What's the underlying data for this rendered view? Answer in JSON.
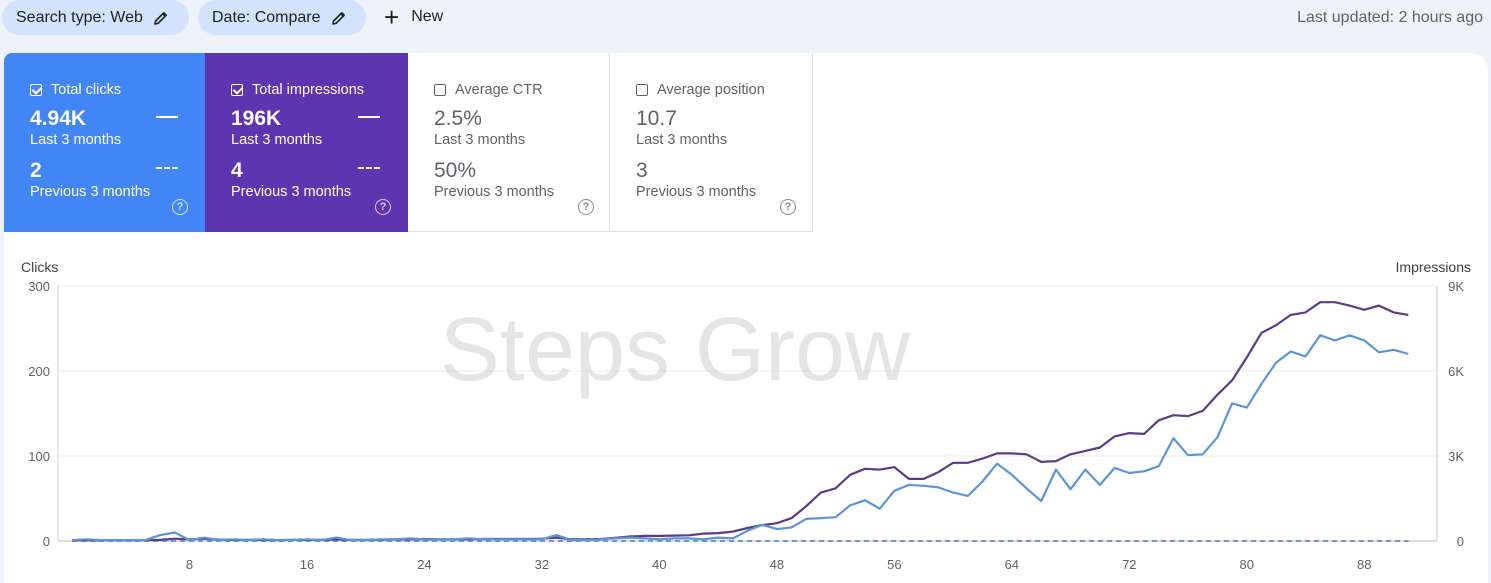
{
  "filters": {
    "search_type": "Search type: Web",
    "date": "Date: Compare",
    "new_label": "New"
  },
  "last_updated": "Last updated: 2 hours ago",
  "cards": {
    "clicks": {
      "title": "Total clicks",
      "checked": true,
      "current_value": "4.94K",
      "current_label": "Last 3 months",
      "previous_value": "2",
      "previous_label": "Previous 3 months",
      "color": "#4285f4"
    },
    "impressions": {
      "title": "Total impressions",
      "checked": true,
      "current_value": "196K",
      "current_label": "Last 3 months",
      "previous_value": "4",
      "previous_label": "Previous 3 months",
      "color": "#5e35b1"
    },
    "ctr": {
      "title": "Average CTR",
      "checked": false,
      "current_value": "2.5%",
      "current_label": "Last 3 months",
      "previous_value": "50%",
      "previous_label": "Previous 3 months"
    },
    "position": {
      "title": "Average position",
      "checked": false,
      "current_value": "10.7",
      "current_label": "Last 3 months",
      "previous_value": "3",
      "previous_label": "Previous 3 months"
    }
  },
  "help_glyph": "?",
  "watermark": "Steps Grow",
  "chart_data": {
    "type": "line",
    "ylabel_left": "Clicks",
    "ylabel_right": "Impressions",
    "yticks_left": [
      "300",
      "200",
      "100",
      "0"
    ],
    "yticks_right": [
      "9K",
      "6K",
      "3K",
      "0"
    ],
    "ylim_left": [
      0,
      300
    ],
    "ylim_right": [
      0,
      9000
    ],
    "xlim": [
      0,
      92
    ],
    "xticks": [
      8,
      16,
      24,
      32,
      40,
      48,
      56,
      64,
      72,
      80,
      88
    ],
    "grid": true,
    "legend": "none",
    "series": [
      {
        "name": "Total clicks",
        "axis": "left",
        "color": "#5b95d9",
        "style": "solid",
        "x": [
          0,
          1,
          2,
          3,
          4,
          5,
          6,
          7,
          8,
          9,
          10,
          11,
          12,
          13,
          14,
          15,
          16,
          17,
          18,
          19,
          20,
          21,
          22,
          23,
          24,
          25,
          26,
          27,
          28,
          29,
          30,
          31,
          32,
          33,
          34,
          35,
          36,
          37,
          38,
          39,
          40,
          41,
          42,
          43,
          44,
          45,
          46,
          47,
          48,
          49,
          50,
          51,
          52,
          53,
          54,
          55,
          56,
          57,
          58,
          59,
          60,
          61,
          62,
          63,
          64,
          65,
          66,
          67,
          68,
          69,
          70,
          71,
          72,
          73,
          74,
          75,
          76,
          77,
          78,
          79,
          80,
          81,
          82,
          83,
          84,
          85,
          86,
          87,
          88,
          89,
          90,
          91
        ],
        "values": [
          1,
          2,
          1,
          1,
          1,
          1,
          7,
          10,
          1,
          4,
          1,
          2,
          1,
          2,
          1,
          1,
          2,
          1,
          4,
          1,
          1,
          2,
          2,
          3,
          2,
          2,
          2,
          3,
          2,
          2,
          2,
          2,
          2,
          7,
          1,
          1,
          2,
          3,
          4,
          3,
          2,
          3,
          3,
          2,
          4,
          3,
          12,
          19,
          14,
          16,
          26,
          27,
          28,
          42,
          48,
          38,
          59,
          66,
          65,
          63,
          57,
          53,
          70,
          91,
          78,
          62,
          47,
          84,
          61,
          84,
          66,
          86,
          80,
          82,
          88,
          121,
          101,
          102,
          122,
          162,
          157,
          185,
          210,
          223,
          217,
          242,
          236,
          242,
          236,
          222,
          225,
          220
        ]
      },
      {
        "name": "Total impressions",
        "axis": "right",
        "color": "#5c3b87",
        "style": "solid",
        "x": [
          0,
          1,
          2,
          3,
          4,
          5,
          6,
          7,
          8,
          9,
          10,
          11,
          12,
          13,
          14,
          15,
          16,
          17,
          18,
          19,
          20,
          21,
          22,
          23,
          24,
          25,
          26,
          27,
          28,
          29,
          30,
          31,
          32,
          33,
          34,
          35,
          36,
          37,
          38,
          39,
          40,
          41,
          42,
          43,
          44,
          45,
          46,
          47,
          48,
          49,
          50,
          51,
          52,
          53,
          54,
          55,
          56,
          57,
          58,
          59,
          60,
          61,
          62,
          63,
          64,
          65,
          66,
          67,
          68,
          69,
          70,
          71,
          72,
          73,
          74,
          75,
          76,
          77,
          78,
          79,
          80,
          81,
          82,
          83,
          84,
          85,
          86,
          87,
          88,
          89,
          90,
          91
        ],
        "values": [
          20,
          30,
          20,
          20,
          20,
          30,
          40,
          80,
          60,
          80,
          50,
          40,
          40,
          40,
          30,
          40,
          40,
          40,
          60,
          40,
          40,
          50,
          60,
          60,
          70,
          60,
          60,
          60,
          70,
          70,
          70,
          70,
          80,
          120,
          60,
          60,
          70,
          110,
          160,
          180,
          180,
          190,
          200,
          260,
          280,
          330,
          460,
          560,
          630,
          810,
          1230,
          1710,
          1860,
          2340,
          2550,
          2520,
          2610,
          2190,
          2190,
          2430,
          2760,
          2760,
          2910,
          3090,
          3090,
          3060,
          2790,
          2820,
          3060,
          3180,
          3300,
          3690,
          3810,
          3780,
          4260,
          4440,
          4410,
          4590,
          5160,
          5670,
          6480,
          7350,
          7620,
          7980,
          8070,
          8430,
          8430,
          8310,
          8160,
          8310,
          8070,
          7980
        ]
      },
      {
        "name": "Total clicks (Previous 3 months)",
        "axis": "left",
        "color": "#5b95d9",
        "style": "dashed",
        "x": [
          0,
          91
        ],
        "values": [
          0,
          0
        ]
      },
      {
        "name": "Total impressions (Previous 3 months)",
        "axis": "right",
        "color": "#5c3b87",
        "style": "dashed",
        "x": [
          0,
          91
        ],
        "values": [
          0,
          0
        ]
      }
    ]
  }
}
